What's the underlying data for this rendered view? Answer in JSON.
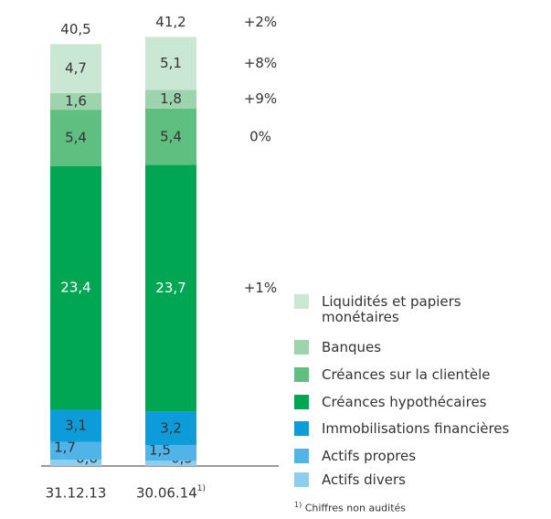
{
  "chart_data": {
    "type": "stacked_bar",
    "categories": [
      "31.12.13",
      "30.06.14"
    ],
    "category_note": "1)",
    "series": [
      {
        "name": "Actifs divers",
        "color": "#8ccdf0",
        "label_color": "#333333",
        "values": [
          0.6,
          0.5
        ],
        "value_labels": [
          "0,6",
          "0,5"
        ]
      },
      {
        "name": "Actifs propres",
        "color": "#50b4e8",
        "label_color": "#333333",
        "values": [
          1.7,
          1.5
        ],
        "value_labels": [
          "1,7",
          "1,5"
        ]
      },
      {
        "name": "Immobilisations financières",
        "color": "#0e9bd9",
        "label_color": "#333333",
        "values": [
          3.1,
          3.2
        ],
        "value_labels": [
          "3,1",
          "3,2"
        ]
      },
      {
        "name": "Créances hypothécaires",
        "color": "#00a651",
        "label_color": "#ffffff",
        "values": [
          23.4,
          23.7
        ],
        "value_labels": [
          "23,4",
          "23,7"
        ],
        "change_label": "+1%"
      },
      {
        "name": "Créances sur la clientèle",
        "color": "#5fbf80",
        "label_color": "#333333",
        "values": [
          5.4,
          5.4
        ],
        "value_labels": [
          "5,4",
          "5,4"
        ],
        "change_label": "0%"
      },
      {
        "name": "Banques",
        "color": "#9dd4ae",
        "label_color": "#333333",
        "values": [
          1.6,
          1.8
        ],
        "value_labels": [
          "1,6",
          "1,8"
        ],
        "change_label": "+9%"
      },
      {
        "name": "Liquidités et papiers monétaires",
        "color": "#c9e7d3",
        "label_color": "#333333",
        "values": [
          4.7,
          5.1
        ],
        "value_labels": [
          "4,7",
          "5,1"
        ],
        "change_label": "+8%"
      }
    ],
    "totals": [
      40.5,
      41.2
    ],
    "total_labels": [
      "40,5",
      "41,2"
    ],
    "total_change_label": "+2%",
    "footnote": {
      "marker": "1)",
      "text": "Chiffres non audités"
    }
  }
}
